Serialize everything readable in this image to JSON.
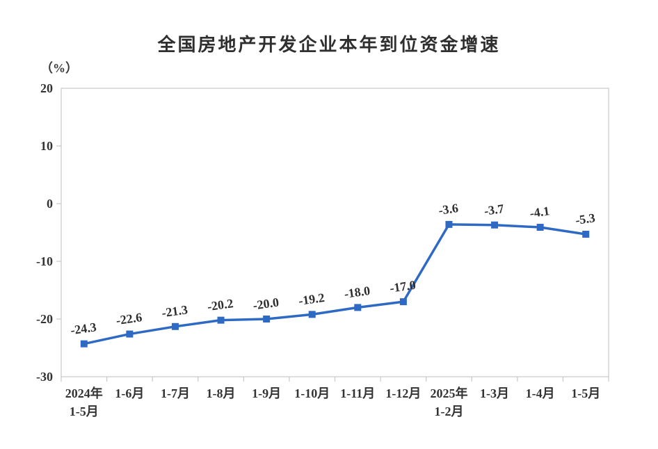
{
  "chart_data": {
    "type": "line",
    "title": "全国房地产开发企业本年到位资金增速",
    "unit_label": "（%）",
    "categories": [
      "2024年\n1-5月",
      "1-6月",
      "1-7月",
      "1-8月",
      "1-9月",
      "1-10月",
      "1-11月",
      "1-12月",
      "2025年\n1-2月",
      "1-3月",
      "1-4月",
      "1-5月"
    ],
    "values": [
      -24.3,
      -22.6,
      -21.3,
      -20.2,
      -20.0,
      -19.2,
      -18.0,
      -17.0,
      -3.6,
      -3.7,
      -4.1,
      -5.3
    ],
    "data_labels": [
      "-24.3",
      "-22.6",
      "-21.3",
      "-20.2",
      "-20.0",
      "-19.2",
      "-18.0",
      "-17.0",
      "-3.6",
      "-3.7",
      "-4.1",
      "-5.3"
    ],
    "ylim": [
      -30,
      20
    ],
    "y_ticks": [
      20,
      10,
      0,
      -10,
      -20,
      -30
    ],
    "xlabel": "",
    "ylabel": "（%）",
    "grid": false,
    "legend": "none",
    "marker": "square",
    "line_color": "#2e6ac4",
    "axis_color": "#c8c8c8",
    "text_color": "#333333",
    "data_label_rotation_deg": -8
  }
}
